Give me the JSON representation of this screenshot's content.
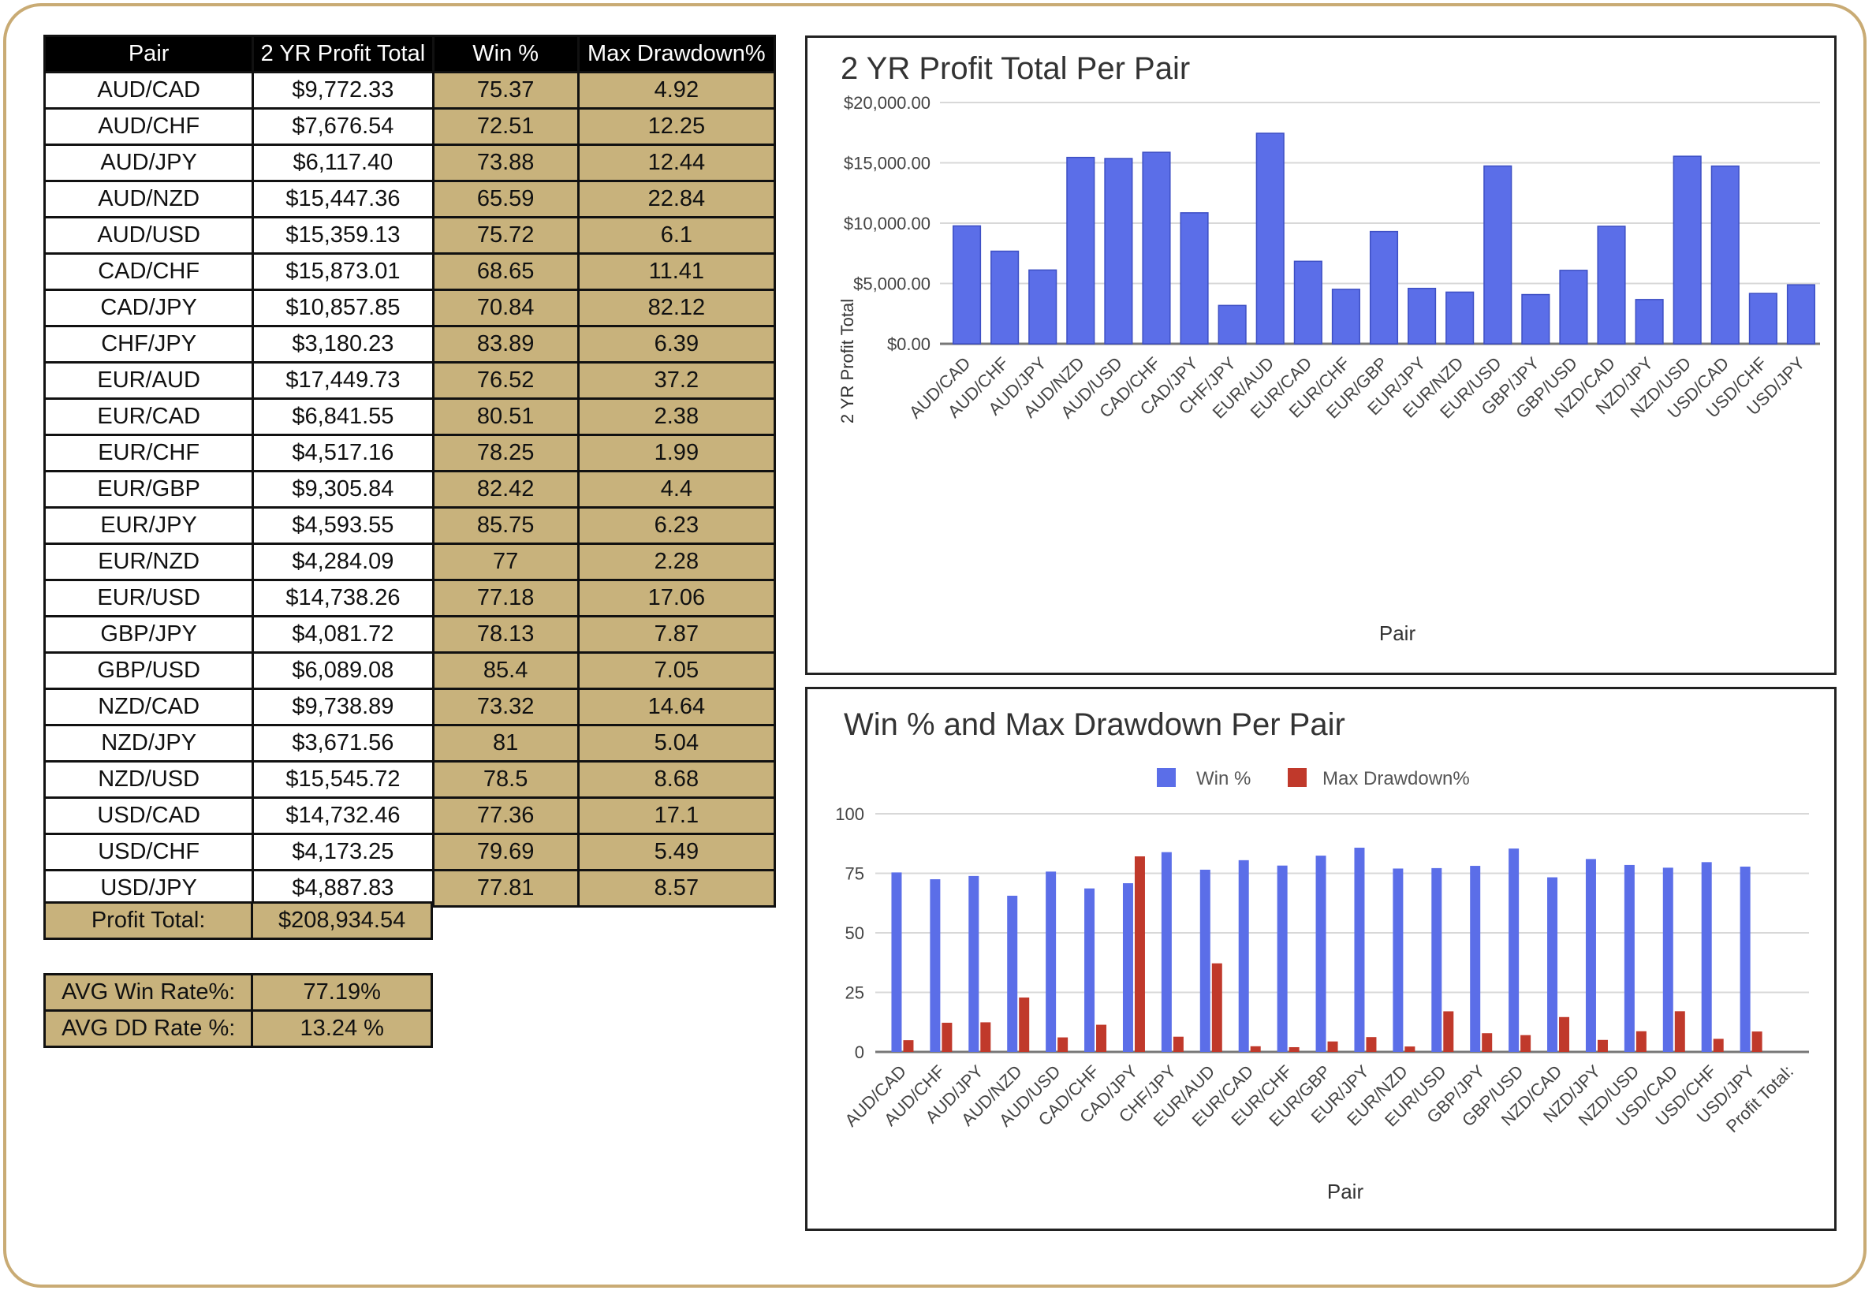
{
  "table": {
    "headers": [
      "Pair",
      "2 YR Profit Total",
      "Win %",
      "Max Drawdown%"
    ],
    "rows": [
      [
        "AUD/CAD",
        "$9,772.33",
        "75.37",
        "4.92"
      ],
      [
        "AUD/CHF",
        "$7,676.54",
        "72.51",
        "12.25"
      ],
      [
        "AUD/JPY",
        "$6,117.40",
        "73.88",
        "12.44"
      ],
      [
        "AUD/NZD",
        "$15,447.36",
        "65.59",
        "22.84"
      ],
      [
        "AUD/USD",
        "$15,359.13",
        "75.72",
        "6.1"
      ],
      [
        "CAD/CHF",
        "$15,873.01",
        "68.65",
        "11.41"
      ],
      [
        "CAD/JPY",
        "$10,857.85",
        "70.84",
        "82.12"
      ],
      [
        "CHF/JPY",
        "$3,180.23",
        "83.89",
        "6.39"
      ],
      [
        "EUR/AUD",
        "$17,449.73",
        "76.52",
        "37.2"
      ],
      [
        "EUR/CAD",
        "$6,841.55",
        "80.51",
        "2.38"
      ],
      [
        "EUR/CHF",
        "$4,517.16",
        "78.25",
        "1.99"
      ],
      [
        "EUR/GBP",
        "$9,305.84",
        "82.42",
        "4.4"
      ],
      [
        "EUR/JPY",
        "$4,593.55",
        "85.75",
        "6.23"
      ],
      [
        "EUR/NZD",
        "$4,284.09",
        "77",
        "2.28"
      ],
      [
        "EUR/USD",
        "$14,738.26",
        "77.18",
        "17.06"
      ],
      [
        "GBP/JPY",
        "$4,081.72",
        "78.13",
        "7.87"
      ],
      [
        "GBP/USD",
        "$6,089.08",
        "85.4",
        "7.05"
      ],
      [
        "NZD/CAD",
        "$9,738.89",
        "73.32",
        "14.64"
      ],
      [
        "NZD/JPY",
        "$3,671.56",
        "81",
        "5.04"
      ],
      [
        "NZD/USD",
        "$15,545.72",
        "78.5",
        "8.68"
      ],
      [
        "USD/CAD",
        "$14,732.46",
        "77.36",
        "17.1"
      ],
      [
        "USD/CHF",
        "$4,173.25",
        "79.69",
        "5.49"
      ],
      [
        "USD/JPY",
        "$4,887.83",
        "77.81",
        "8.57"
      ]
    ],
    "total_label": "Profit Total:",
    "total_value": "$208,934.54"
  },
  "summary": {
    "avg_win_label": "AVG Win Rate%:",
    "avg_win_value": "77.19%",
    "avg_dd_label": "AVG DD Rate %:",
    "avg_dd_value": "13.24 %"
  },
  "colors": {
    "blue": "#5b6ee8",
    "red": "#c0392b",
    "gold": "#c8b27c",
    "frame": "#c9ab74"
  },
  "chart_data": [
    {
      "type": "bar",
      "title": "2 YR Profit Total Per Pair",
      "xlabel": "Pair",
      "ylabel": "2 YR Profit Total",
      "ylim": [
        0,
        20000
      ],
      "yticks": [
        0,
        5000,
        10000,
        15000,
        20000
      ],
      "ytick_labels": [
        "$0.00",
        "$5,000.00",
        "$10,000.00",
        "$15,000.00",
        "$20,000.00"
      ],
      "categories": [
        "AUD/CAD",
        "AUD/CHF",
        "AUD/JPY",
        "AUD/NZD",
        "AUD/USD",
        "CAD/CHF",
        "CAD/JPY",
        "CHF/JPY",
        "EUR/AUD",
        "EUR/CAD",
        "EUR/CHF",
        "EUR/GBP",
        "EUR/JPY",
        "EUR/NZD",
        "EUR/USD",
        "GBP/JPY",
        "GBP/USD",
        "NZD/CAD",
        "NZD/JPY",
        "NZD/USD",
        "USD/CAD",
        "USD/CHF",
        "USD/JPY"
      ],
      "values": [
        9772.33,
        7676.54,
        6117.4,
        15447.36,
        15359.13,
        15873.01,
        10857.85,
        3180.23,
        17449.73,
        6841.55,
        4517.16,
        9305.84,
        4593.55,
        4284.09,
        14738.26,
        4081.72,
        6089.08,
        9738.89,
        3671.56,
        15545.72,
        14732.46,
        4173.25,
        4887.83
      ],
      "grid": true,
      "legend": "none"
    },
    {
      "type": "bar",
      "title": "Win %  and Max Drawdown Per Pair",
      "xlabel": "Pair",
      "ylim": [
        0,
        100
      ],
      "yticks": [
        0,
        25,
        50,
        75,
        100
      ],
      "categories": [
        "AUD/CAD",
        "AUD/CHF",
        "AUD/JPY",
        "AUD/NZD",
        "AUD/USD",
        "CAD/CHF",
        "CAD/JPY",
        "CHF/JPY",
        "EUR/AUD",
        "EUR/CAD",
        "EUR/CHF",
        "EUR/GBP",
        "EUR/JPY",
        "EUR/NZD",
        "EUR/USD",
        "GBP/JPY",
        "GBP/USD",
        "NZD/CAD",
        "NZD/JPY",
        "NZD/USD",
        "USD/CAD",
        "USD/CHF",
        "USD/JPY",
        "Profit Total:"
      ],
      "series": [
        {
          "name": "Win %",
          "values": [
            75.37,
            72.51,
            73.88,
            65.59,
            75.72,
            68.65,
            70.84,
            83.89,
            76.52,
            80.51,
            78.25,
            82.42,
            85.75,
            77,
            77.18,
            78.13,
            85.4,
            73.32,
            81,
            78.5,
            77.36,
            79.69,
            77.81,
            null
          ]
        },
        {
          "name": "Max Drawdown%",
          "values": [
            4.92,
            12.25,
            12.44,
            22.84,
            6.1,
            11.41,
            82.12,
            6.39,
            37.2,
            2.38,
            1.99,
            4.4,
            6.23,
            2.28,
            17.06,
            7.87,
            7.05,
            14.64,
            5.04,
            8.68,
            17.1,
            5.49,
            8.57,
            null
          ]
        }
      ],
      "grid": true,
      "legend": "top"
    }
  ]
}
